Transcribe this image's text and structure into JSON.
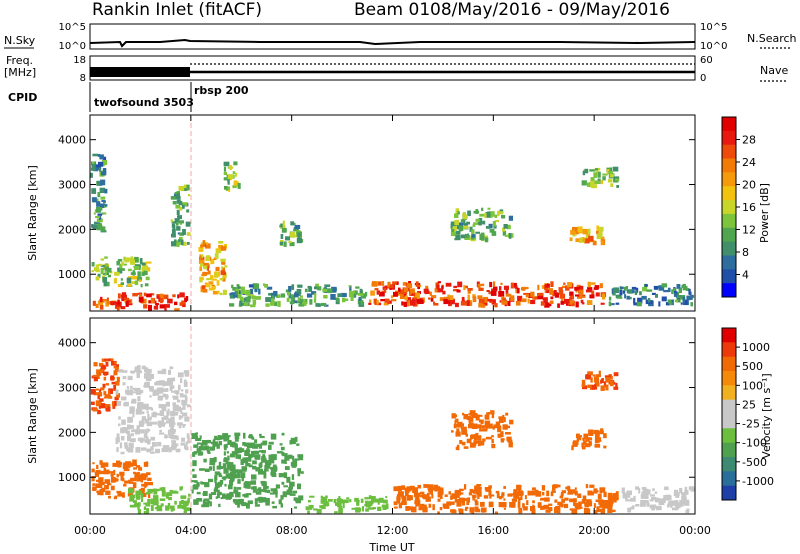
{
  "header": {
    "station": "Rankin Inlet (fitACF)",
    "beam_info": "Beam 01",
    "date_range": "08/May/2016 - 09/May/2016"
  },
  "top_panels": {
    "nsky_label": "N.Sky",
    "nsky_ticks": [
      "10^5",
      "10^0"
    ],
    "nsearch_label": "N.Search",
    "nsearch_ticks": [
      "10^5",
      "10^0"
    ],
    "freq_label_1": "Freq.",
    "freq_label_2": "[MHz]",
    "freq_ticks": [
      "18",
      "8"
    ],
    "nave_label": "Nave",
    "nave_ticks": [
      "60",
      "0"
    ],
    "cpid_label": "CPID",
    "cpid_segments": [
      {
        "name": "twofsound 3503",
        "start_hour": 0,
        "end_hour": 4
      },
      {
        "name": "rbsp 200",
        "start_hour": 4,
        "end_hour": 24
      }
    ]
  },
  "axes": {
    "ylabel": "Slant Range [km]",
    "xlabel": "Time UT",
    "yticks": [
      "4000",
      "3000",
      "2000",
      "1000"
    ],
    "xticks": [
      "00:00",
      "04:00",
      "08:00",
      "12:00",
      "16:00",
      "20:00",
      "00:00"
    ]
  },
  "colorbars": {
    "power": {
      "label": "Power [dB]",
      "ticks": [
        "28",
        "24",
        "20",
        "16",
        "12",
        "8",
        "4"
      ],
      "colors": [
        "#0000ff",
        "#1f4fa8",
        "#2d6e9e",
        "#3e8f6a",
        "#4fa64f",
        "#7cc43c",
        "#c8d62a",
        "#f2c20f",
        "#f59a0a",
        "#f27a06",
        "#ee4a0a",
        "#e81a10",
        "#e00000"
      ]
    },
    "velocity": {
      "label": "Velocity [m s⁻¹]",
      "ticks": [
        "1000",
        "500",
        "100",
        "25",
        "-25",
        "-100",
        "-500",
        "-1000"
      ],
      "colors": [
        "#1f3fa8",
        "#2a6e9a",
        "#3d8a72",
        "#4fa04f",
        "#6cbf3e",
        "#c8c8c8",
        "#c8c8c8",
        "#f0b020",
        "#f58a0a",
        "#f26a06",
        "#ee3a0a",
        "#e00000"
      ]
    }
  },
  "chart_data": [
    {
      "type": "line",
      "title": "N.Sky / N.Search",
      "series": [
        {
          "name": "N.Sky",
          "x": [
            0,
            1,
            2,
            3,
            4,
            5,
            6,
            8,
            10,
            12,
            14,
            16,
            18,
            20,
            22,
            24
          ],
          "values": [
            5,
            5,
            4,
            5,
            6,
            5,
            5,
            4,
            4,
            4,
            4,
            3,
            4,
            4,
            4,
            5
          ]
        },
        {
          "name": "N.Search",
          "x": [
            0,
            24
          ],
          "values": [
            0,
            0
          ]
        }
      ],
      "xlim": [
        0,
        24
      ],
      "ylim": [
        0,
        100000
      ]
    },
    {
      "type": "line",
      "title": "Freq. / Nave",
      "series": [
        {
          "name": "Freq.",
          "x": [
            0,
            4,
            4,
            24
          ],
          "values": [
            10.5,
            10.5,
            10.5,
            10.5
          ]
        },
        {
          "name": "Nave",
          "x": [
            0,
            4,
            4,
            24
          ],
          "values": [
            18,
            18,
            32,
            32
          ]
        }
      ],
      "xlim": [
        0,
        24
      ]
    },
    {
      "type": "heatmap",
      "title": "Power [dB]",
      "xlabel": "Time UT",
      "ylabel": "Slant Range [km]",
      "xlim": [
        0,
        24
      ],
      "ylim": [
        180,
        4550
      ],
      "regions": [
        {
          "t0": 0.0,
          "t1": 1.6,
          "r0": 200,
          "r1": 500,
          "value": 24
        },
        {
          "t0": 1.0,
          "t1": 4.0,
          "r0": 180,
          "r1": 600,
          "value": 28
        },
        {
          "t0": 0.0,
          "t1": 2.5,
          "r0": 700,
          "r1": 1400,
          "value": 14
        },
        {
          "t0": 0.0,
          "t1": 0.7,
          "r0": 1900,
          "r1": 3700,
          "value": 10
        },
        {
          "t0": 3.2,
          "t1": 4.0,
          "r0": 1600,
          "r1": 3000,
          "value": 12
        },
        {
          "t0": 4.3,
          "t1": 5.5,
          "r0": 500,
          "r1": 1800,
          "value": 20
        },
        {
          "t0": 5.3,
          "t1": 6.0,
          "r0": 2800,
          "r1": 3600,
          "value": 14
        },
        {
          "t0": 7.5,
          "t1": 8.5,
          "r0": 1600,
          "r1": 2200,
          "value": 12
        },
        {
          "t0": 5.5,
          "t1": 11.0,
          "r0": 250,
          "r1": 800,
          "value": 10
        },
        {
          "t0": 11.0,
          "t1": 20.5,
          "r0": 250,
          "r1": 850,
          "value": 26
        },
        {
          "t0": 14.3,
          "t1": 16.8,
          "r0": 1700,
          "r1": 2500,
          "value": 12
        },
        {
          "t0": 19.0,
          "t1": 20.5,
          "r0": 1600,
          "r1": 2100,
          "value": 20
        },
        {
          "t0": 19.5,
          "t1": 21.0,
          "r0": 2900,
          "r1": 3400,
          "value": 14
        },
        {
          "t0": 20.5,
          "t1": 24.0,
          "r0": 250,
          "r1": 800,
          "value": 8
        }
      ]
    },
    {
      "type": "heatmap",
      "title": "Velocity [m s⁻¹]",
      "xlabel": "Time UT",
      "ylabel": "Slant Range [km]",
      "xlim": [
        0,
        24
      ],
      "ylim": [
        180,
        4550
      ],
      "regions": [
        {
          "t0": 0.0,
          "t1": 1.2,
          "r0": 2400,
          "r1": 3700,
          "value": -300
        },
        {
          "t0": 0.0,
          "t1": 2.5,
          "r0": 500,
          "r1": 1400,
          "value": -200
        },
        {
          "t0": 1.0,
          "t1": 4.0,
          "r0": 1500,
          "r1": 3500,
          "value": 0
        },
        {
          "t0": 1.5,
          "t1": 4.0,
          "r0": 180,
          "r1": 800,
          "value": 60
        },
        {
          "t0": 4.0,
          "t1": 8.5,
          "r0": 300,
          "r1": 2000,
          "value": 150
        },
        {
          "t0": 8.5,
          "t1": 12.0,
          "r0": 180,
          "r1": 600,
          "value": 60
        },
        {
          "t0": 12.0,
          "t1": 21.0,
          "r0": 180,
          "r1": 850,
          "value": -150
        },
        {
          "t0": 14.3,
          "t1": 16.8,
          "r0": 1600,
          "r1": 2500,
          "value": -200
        },
        {
          "t0": 19.0,
          "t1": 20.5,
          "r0": 1600,
          "r1": 2100,
          "value": -200
        },
        {
          "t0": 19.5,
          "t1": 21.0,
          "r0": 2900,
          "r1": 3400,
          "value": -300
        },
        {
          "t0": 21.0,
          "t1": 24.0,
          "r0": 180,
          "r1": 800,
          "value": 40
        }
      ]
    }
  ]
}
